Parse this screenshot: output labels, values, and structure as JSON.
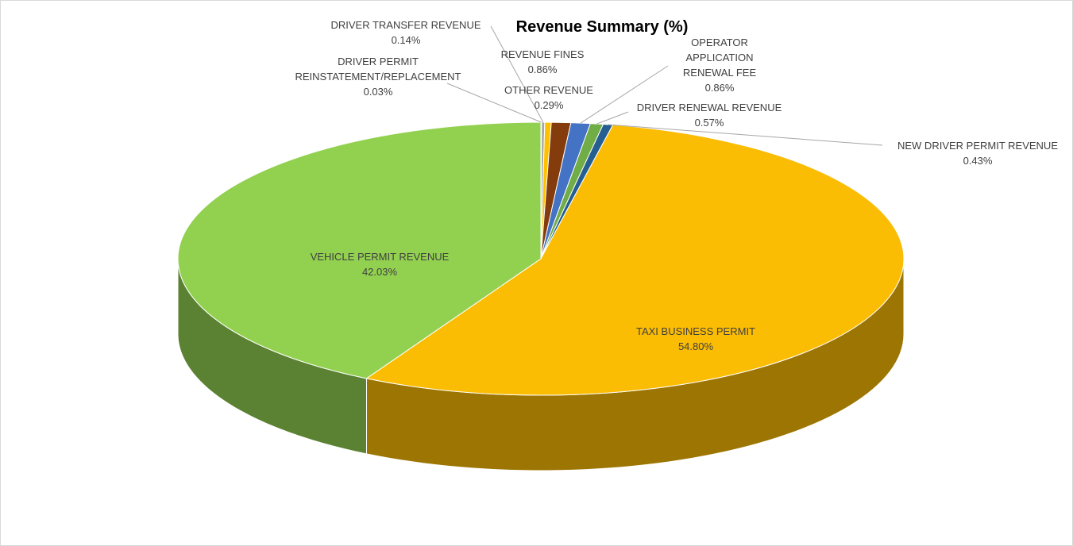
{
  "chart_data": {
    "type": "pie",
    "title": "Revenue Summary (%)",
    "categories": [
      "DRIVER PERMIT REINSTATEMENT/REPLACEMENT",
      "DRIVER TRANSFER REVENUE",
      "OTHER REVENUE",
      "REVENUE FINES",
      "OPERATOR APPLICATION RENEWAL FEE",
      "DRIVER RENEWAL REVENUE",
      "NEW DRIVER PERMIT REVENUE",
      "TAXI BUSINESS PERMIT",
      "VEHICLE PERMIT REVENUE"
    ],
    "values": [
      0.03,
      0.14,
      0.29,
      0.86,
      0.86,
      0.57,
      0.43,
      54.8,
      42.03
    ],
    "value_labels": [
      "0.03%",
      "0.14%",
      "0.29%",
      "0.86%",
      "0.86%",
      "0.57%",
      "0.43%",
      "54.80%",
      "42.03%"
    ],
    "colors": [
      "#ed7d31",
      "#a5a5a5",
      "#ffc000",
      "#843c0c",
      "#4472c4",
      "#70ad47",
      "#255e91",
      "#fbbc04",
      "#92d050"
    ]
  }
}
